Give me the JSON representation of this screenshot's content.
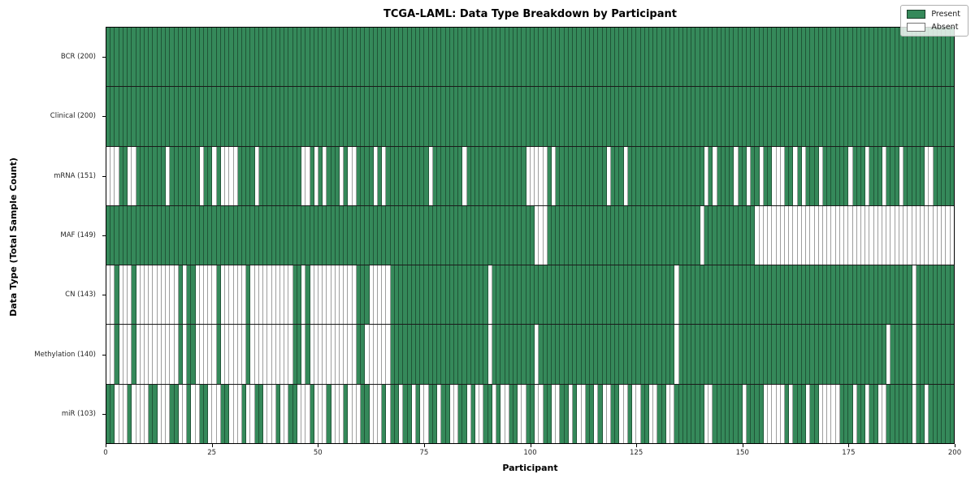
{
  "title": "TCGA-LAML: Data Type Breakdown by Participant",
  "xlabel": "Participant",
  "ylabel": "Data Type (Total Sample Count)",
  "colors": {
    "present": "#35895a",
    "absent": "#ffffff",
    "cell_border": "rgba(0,0,0,0.38)",
    "row_separator": "#1a1a1a"
  },
  "legend": [
    {
      "label": "Present",
      "color_key": "present"
    },
    {
      "label": "Absent",
      "color_key": "absent"
    }
  ],
  "chart_data": {
    "type": "heatmap",
    "title": "TCGA-LAML: Data Type Breakdown by Participant",
    "xlabel": "Participant",
    "ylabel": "Data Type (Total Sample Count)",
    "legend_position": "upper right",
    "n_participants": 200,
    "x_axis": {
      "range": [
        0,
        200
      ],
      "ticks": [
        0,
        25,
        50,
        75,
        100,
        125,
        150,
        175,
        200
      ]
    },
    "cell_states": {
      "present": 1,
      "absent": 0
    },
    "rows": [
      {
        "label": "BCR (200)",
        "present_count": 200,
        "absent_participants": []
      },
      {
        "label": "Clinical (200)",
        "present_count": 200,
        "absent_participants": []
      },
      {
        "label": "mRNA (151)",
        "present_count": 151,
        "absent_participants": [
          0,
          1,
          2,
          5,
          6,
          14,
          22,
          25,
          27,
          28,
          29,
          30,
          35,
          46,
          47,
          49,
          51,
          55,
          57,
          58,
          63,
          65,
          76,
          84,
          99,
          100,
          101,
          102,
          103,
          105,
          118,
          122,
          141,
          143,
          148,
          151,
          154,
          157,
          158,
          159,
          162,
          164,
          168,
          175,
          179,
          183,
          187,
          193,
          194
        ]
      },
      {
        "label": "MAF (149)",
        "present_count": 149,
        "absent_participants": [
          101,
          102,
          103,
          140,
          153,
          154,
          155,
          156,
          157,
          158,
          159,
          160,
          161,
          162,
          163,
          164,
          165,
          166,
          167,
          168,
          169,
          170,
          171,
          172,
          173,
          174,
          175,
          176,
          177,
          178,
          179,
          180,
          181,
          182,
          183,
          184,
          185,
          186,
          187,
          188,
          189,
          190,
          191,
          192,
          193,
          194,
          195,
          196,
          197,
          198,
          199
        ]
      },
      {
        "label": "CN (143)",
        "present_count": 143,
        "absent_participants": [
          0,
          1,
          3,
          4,
          5,
          7,
          8,
          9,
          10,
          11,
          12,
          13,
          14,
          15,
          16,
          18,
          21,
          22,
          23,
          24,
          25,
          27,
          28,
          29,
          30,
          31,
          32,
          34,
          35,
          36,
          37,
          38,
          39,
          40,
          41,
          42,
          43,
          46,
          48,
          49,
          50,
          51,
          52,
          53,
          54,
          55,
          56,
          57,
          58,
          62,
          63,
          64,
          65,
          66,
          90,
          134,
          190
        ]
      },
      {
        "label": "Methylation (140)",
        "present_count": 140,
        "absent_participants": [
          0,
          1,
          3,
          4,
          5,
          7,
          8,
          9,
          10,
          11,
          12,
          13,
          14,
          15,
          16,
          18,
          21,
          22,
          23,
          24,
          25,
          27,
          28,
          29,
          30,
          31,
          32,
          34,
          35,
          36,
          37,
          38,
          39,
          40,
          41,
          42,
          43,
          46,
          48,
          49,
          50,
          51,
          52,
          53,
          54,
          55,
          56,
          57,
          58,
          61,
          62,
          63,
          64,
          65,
          66,
          90,
          101,
          134,
          184,
          190
        ]
      },
      {
        "label": "miR (103)",
        "present_count": 103,
        "absent_participants": [
          2,
          3,
          4,
          6,
          7,
          8,
          9,
          12,
          13,
          14,
          17,
          18,
          20,
          21,
          24,
          25,
          26,
          29,
          30,
          31,
          33,
          34,
          37,
          38,
          39,
          41,
          42,
          45,
          46,
          47,
          49,
          50,
          51,
          53,
          54,
          55,
          57,
          58,
          59,
          62,
          63,
          64,
          66,
          69,
          72,
          74,
          75,
          78,
          81,
          82,
          85,
          87,
          88,
          91,
          93,
          94,
          97,
          98,
          101,
          102,
          105,
          106,
          109,
          111,
          112,
          115,
          117,
          118,
          121,
          122,
          124,
          125,
          128,
          129,
          132,
          133,
          141,
          142,
          150,
          155,
          156,
          157,
          158,
          159,
          161,
          165,
          168,
          169,
          170,
          171,
          172,
          176,
          179,
          182,
          183,
          190,
          193
        ]
      }
    ]
  }
}
